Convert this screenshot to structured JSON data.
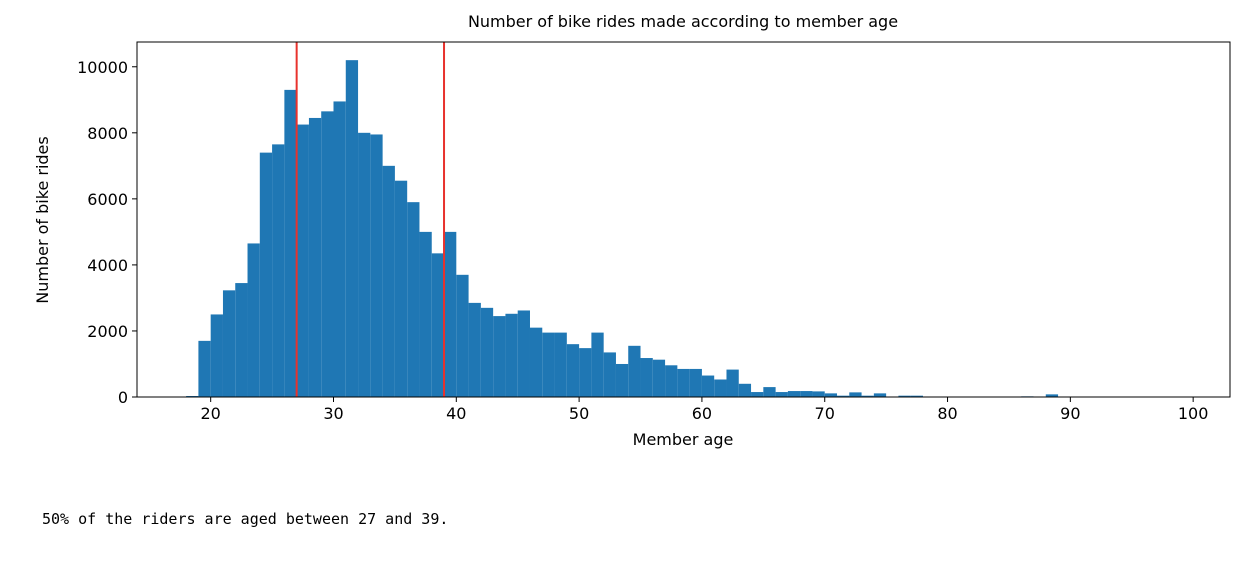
{
  "chart_data": {
    "type": "histogram",
    "title": "Number of bike rides made according to member age",
    "x_label": "Member age",
    "y_label": "Number of bike rides",
    "bins": [
      18,
      19,
      20,
      21,
      22,
      23,
      24,
      25,
      26,
      27,
      28,
      29,
      30,
      31,
      32,
      33,
      34,
      35,
      36,
      37,
      38,
      39,
      40,
      41,
      42,
      43,
      44,
      45,
      46,
      47,
      48,
      49,
      50,
      51,
      52,
      53,
      54,
      55,
      56,
      57,
      58,
      59,
      60,
      61,
      62,
      63,
      64,
      65,
      66,
      67,
      68,
      69,
      70,
      71,
      72,
      73,
      74,
      75,
      76,
      77,
      78,
      79,
      80,
      81,
      82,
      83,
      84,
      85,
      86,
      87,
      88,
      89,
      90,
      91,
      92,
      93,
      94,
      95,
      96,
      97,
      98,
      99
    ],
    "counts": [
      30,
      1700,
      2500,
      3230,
      3450,
      4650,
      7400,
      7650,
      9300,
      8250,
      8450,
      8650,
      8950,
      10200,
      8000,
      7950,
      7000,
      6550,
      5900,
      5000,
      4350,
      5000,
      3700,
      2850,
      2700,
      2450,
      2520,
      2620,
      2100,
      1950,
      1950,
      1600,
      1480,
      1950,
      1350,
      1000,
      1550,
      1180,
      1130,
      960,
      850,
      850,
      650,
      530,
      830,
      400,
      150,
      300,
      150,
      180,
      180,
      170,
      110,
      40,
      140,
      40,
      110,
      10,
      40,
      40,
      10,
      5,
      5,
      5,
      5,
      5,
      5,
      5,
      20,
      0,
      80,
      0,
      0,
      0,
      0,
      0,
      0,
      0,
      0,
      0,
      0
    ],
    "color": "#1f77b4",
    "vlines": [
      27,
      39
    ],
    "vline_color": "#e8322d",
    "xlim": [
      14,
      103
    ],
    "xticks": [
      20,
      30,
      40,
      50,
      60,
      70,
      80,
      90,
      100
    ],
    "ylim": [
      0,
      10750
    ],
    "yticks": [
      0,
      2000,
      4000,
      6000,
      8000,
      10000
    ]
  },
  "output_text": "50% of the riders are aged between 27 and 39."
}
